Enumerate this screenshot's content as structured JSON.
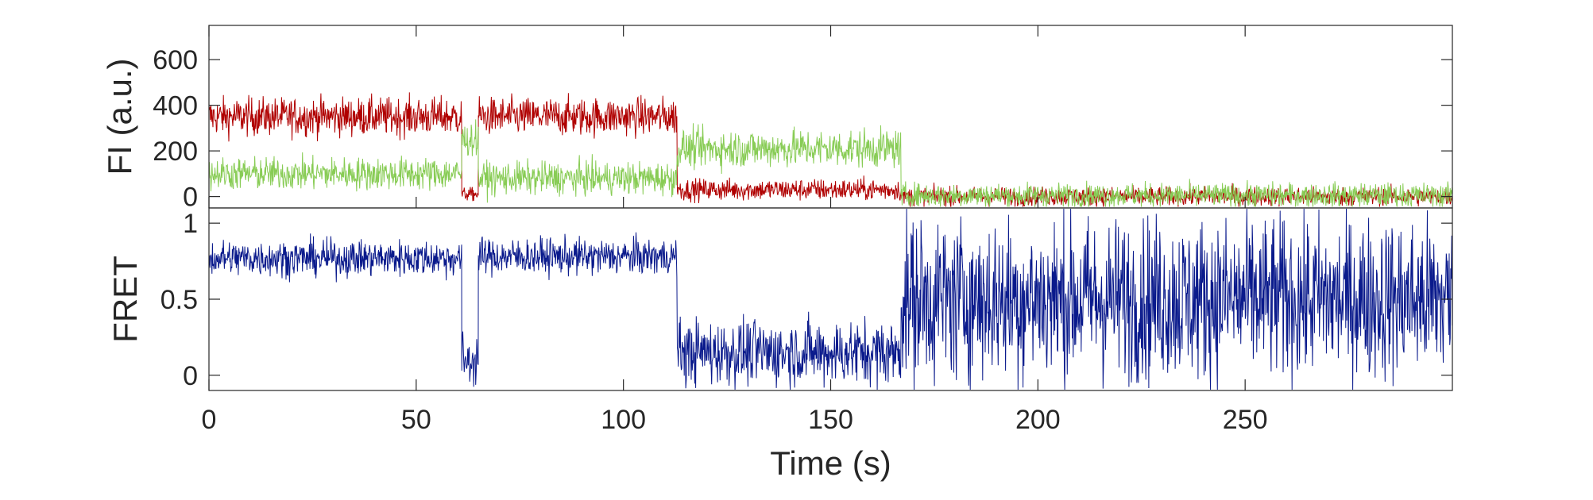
{
  "chart_data": [
    {
      "type": "line",
      "panel": "fluorescence",
      "title": "",
      "xlabel": "",
      "ylabel": "FI (a.u.)",
      "xlim": [
        0,
        300
      ],
      "ylim": [
        -50,
        750
      ],
      "y_ticks": [
        0,
        200,
        400,
        600
      ],
      "y_tick_labels": [
        "0",
        "200",
        "400",
        "600"
      ],
      "grid": false,
      "legend": "none",
      "series": [
        {
          "color": "#b00000",
          "segments": [
            {
              "x_start": 0,
              "x_end": 61,
              "mean": 350,
              "noise": 70
            },
            {
              "x_start": 61,
              "x_end": 65,
              "mean": 10,
              "noise": 25
            },
            {
              "x_start": 65,
              "x_end": 113,
              "mean": 350,
              "noise": 70
            },
            {
              "x_start": 113,
              "x_end": 167,
              "mean": 30,
              "noise": 40
            },
            {
              "x_start": 167,
              "x_end": 300,
              "mean": 0,
              "noise": 35
            }
          ]
        },
        {
          "color": "#88cc55",
          "segments": [
            {
              "x_start": 0,
              "x_end": 61,
              "mean": 100,
              "noise": 60
            },
            {
              "x_start": 61,
              "x_end": 65,
              "mean": 250,
              "noise": 60
            },
            {
              "x_start": 65,
              "x_end": 113,
              "mean": 80,
              "noise": 60
            },
            {
              "x_start": 113,
              "x_end": 167,
              "mean": 210,
              "noise": 70
            },
            {
              "x_start": 167,
              "x_end": 300,
              "mean": 5,
              "noise": 45
            }
          ]
        }
      ]
    },
    {
      "type": "line",
      "panel": "fret",
      "title": "",
      "xlabel": "Time (s)",
      "ylabel": "FRET",
      "xlim": [
        0,
        300
      ],
      "ylim": [
        -0.1,
        1.1
      ],
      "x_ticks": [
        0,
        50,
        100,
        150,
        200,
        250
      ],
      "x_tick_labels": [
        "0",
        "50",
        "100",
        "150",
        "200",
        "250"
      ],
      "y_ticks": [
        0,
        0.5,
        1
      ],
      "y_tick_labels": [
        "0",
        "0.5",
        "1"
      ],
      "grid": false,
      "legend": "none",
      "series": [
        {
          "color": "#0a1a8c",
          "segments": [
            {
              "x_start": 0,
              "x_end": 61,
              "mean": 0.77,
              "noise": 0.1
            },
            {
              "x_start": 61,
              "x_end": 65,
              "mean": 0.1,
              "noise": 0.15
            },
            {
              "x_start": 65,
              "x_end": 113,
              "mean": 0.78,
              "noise": 0.1
            },
            {
              "x_start": 113,
              "x_end": 167,
              "mean": 0.15,
              "noise": 0.18
            },
            {
              "x_start": 167,
              "x_end": 300,
              "mean": 0.5,
              "noise": 0.45
            }
          ]
        }
      ]
    }
  ],
  "colors": {
    "acceptor": "#b00000",
    "donor": "#88cc55",
    "fret": "#0a1a8c",
    "axis": "#262626"
  }
}
